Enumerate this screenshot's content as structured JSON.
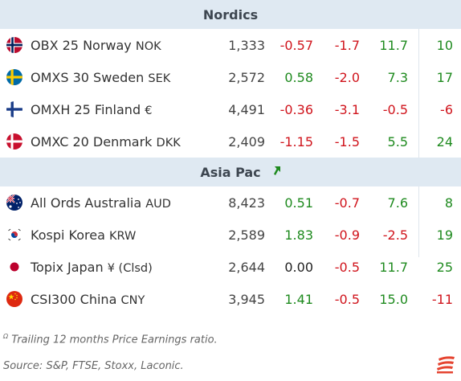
{
  "sections": [
    {
      "title": "Nordics",
      "rows": [
        {
          "flag": "norway-flag-icon",
          "name": "OBX 25 Norway",
          "ccy": "NOK",
          "level": "1,333",
          "d1": "-0.57",
          "d1c": "neg",
          "d2": "-1.7",
          "d2c": "neg",
          "d3": "11.7",
          "d3c": "pos",
          "pe": "10",
          "pec": "pos"
        },
        {
          "flag": "sweden-flag-icon",
          "name": "OMXS 30 Sweden",
          "ccy": "SEK",
          "level": "2,572",
          "d1": "0.58",
          "d1c": "pos",
          "d2": "-2.0",
          "d2c": "neg",
          "d3": "7.3",
          "d3c": "pos",
          "pe": "17",
          "pec": "pos"
        },
        {
          "flag": "finland-flag-icon",
          "name": "OMXH 25 Finland",
          "ccy": "€",
          "level": "4,491",
          "d1": "-0.36",
          "d1c": "neg",
          "d2": "-3.1",
          "d2c": "neg",
          "d3": "-0.5",
          "d3c": "neg",
          "pe": "-6",
          "pec": "neg"
        },
        {
          "flag": "denmark-flag-icon",
          "name": "OMXC 20 Denmark",
          "ccy": "DKK",
          "level": "2,409",
          "d1": "-1.15",
          "d1c": "neg",
          "d2": "-1.5",
          "d2c": "neg",
          "d3": "5.5",
          "d3c": "pos",
          "pe": "24",
          "pec": "pos"
        }
      ]
    },
    {
      "title": "Asia Pac",
      "rows": [
        {
          "flag": "australia-flag-icon",
          "name": "All Ords Australia",
          "ccy": "AUD",
          "level": "8,423",
          "d1": "0.51",
          "d1c": "pos",
          "d2": "-0.7",
          "d2c": "neg",
          "d3": "7.6",
          "d3c": "pos",
          "pe": "8",
          "pec": "pos"
        },
        {
          "flag": "korea-flag-icon",
          "name": "Kospi Korea",
          "ccy": "KRW",
          "level": "2,589",
          "d1": "1.83",
          "d1c": "pos",
          "d2": "-0.9",
          "d2c": "neg",
          "d3": "-2.5",
          "d3c": "neg",
          "pe": "19",
          "pec": "pos"
        },
        {
          "flag": "japan-flag-icon",
          "name": "Topix Japan",
          "ccy": "¥ (Clsd)",
          "level": "2,644",
          "d1": "0.00",
          "d1c": "zero",
          "d2": "-0.5",
          "d2c": "neg",
          "d3": "11.7",
          "d3c": "pos",
          "pe": "25",
          "pec": "pos"
        },
        {
          "flag": "china-flag-icon",
          "name": "CSI300 China",
          "ccy": "CNY",
          "level": "3,945",
          "d1": "1.41",
          "d1c": "pos",
          "d2": "-0.5",
          "d2c": "neg",
          "d3": "15.0",
          "d3c": "pos",
          "pe": "-11",
          "pec": "neg"
        }
      ]
    }
  ],
  "footnote": {
    "marker": "Ω",
    "text": "Trailing 12 months Price Earnings ratio."
  },
  "source": "Source: S&P, FTSE, Stoxx, Laconic.",
  "colors": {
    "negative": "#d0141c",
    "positive": "#1e8a1e",
    "header_bg": "#dfe9f2",
    "logo": "#e5432f"
  }
}
